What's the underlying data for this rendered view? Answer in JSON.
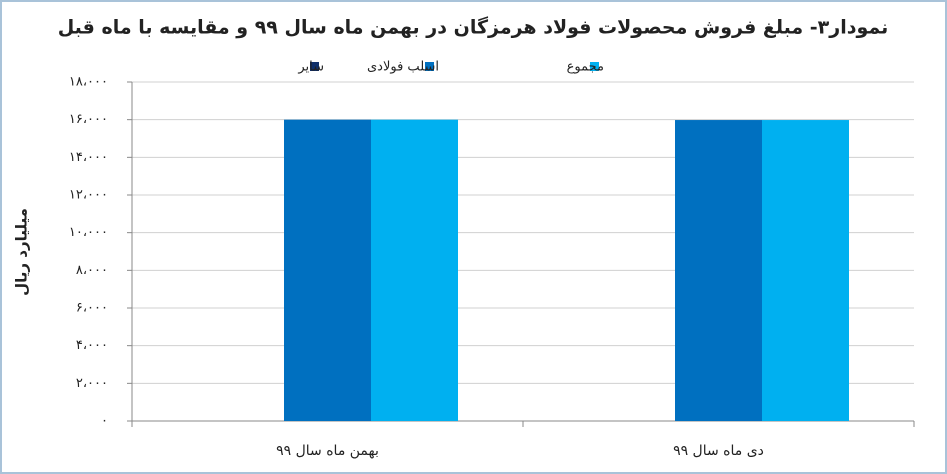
{
  "chart_data": {
    "type": "bar",
    "title": "نمودار۳- مبلغ فروش محصولات فولاد هرمزگان در بهمن ماه سال ۹۹ و مقایسه با ماه قبل",
    "y_label": "میلیارد ریال",
    "categories": [
      "بهمن ماه سال ۹۹",
      "دی ماه سال ۹۹"
    ],
    "series": [
      {
        "name": "سایر",
        "color": "#10306a",
        "values": [
          0,
          0
        ]
      },
      {
        "name": "اسلب فولادی",
        "color": "#0070c0",
        "values": [
          16000,
          15980
        ]
      },
      {
        "name": "مجموع",
        "color": "#00b0f0",
        "values": [
          16000,
          15980
        ]
      }
    ],
    "ylim": [
      0,
      18000
    ],
    "yticks": [
      {
        "value": 0,
        "label": "۰"
      },
      {
        "value": 2000,
        "label": "۲،۰۰۰"
      },
      {
        "value": 4000,
        "label": "۴،۰۰۰"
      },
      {
        "value": 6000,
        "label": "۶،۰۰۰"
      },
      {
        "value": 8000,
        "label": "۸،۰۰۰"
      },
      {
        "value": 10000,
        "label": "۱۰،۰۰۰"
      },
      {
        "value": 12000,
        "label": "۱۲،۰۰۰"
      },
      {
        "value": 14000,
        "label": "۱۴،۰۰۰"
      },
      {
        "value": 16000,
        "label": "۱۶،۰۰۰"
      },
      {
        "value": 18000,
        "label": "۱۸،۰۰۰"
      }
    ],
    "grid": true
  }
}
